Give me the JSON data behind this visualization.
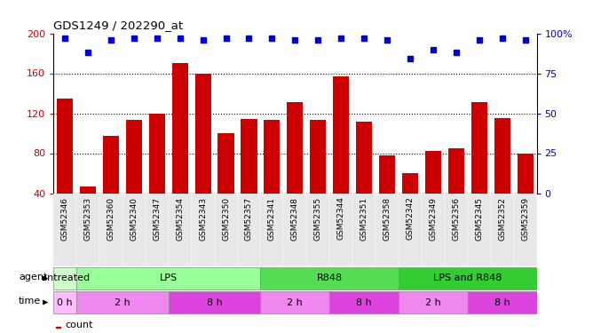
{
  "title": "GDS1249 / 202290_at",
  "samples": [
    "GSM52346",
    "GSM52353",
    "GSM52360",
    "GSM52340",
    "GSM52347",
    "GSM52354",
    "GSM52343",
    "GSM52350",
    "GSM52357",
    "GSM52341",
    "GSM52348",
    "GSM52355",
    "GSM52344",
    "GSM52351",
    "GSM52358",
    "GSM52342",
    "GSM52349",
    "GSM52356",
    "GSM52345",
    "GSM52352",
    "GSM52359"
  ],
  "counts": [
    135,
    47,
    97,
    113,
    120,
    170,
    160,
    100,
    114,
    113,
    131,
    113,
    157,
    112,
    78,
    60,
    82,
    85,
    131,
    115,
    80
  ],
  "percentiles": [
    97,
    88,
    96,
    97,
    97,
    97,
    96,
    97,
    97,
    97,
    96,
    96,
    97,
    97,
    96,
    84,
    90,
    88,
    96,
    97,
    96
  ],
  "bar_color": "#cc0000",
  "dot_color": "#0000cc",
  "ylim_left": [
    40,
    200
  ],
  "ylim_right": [
    0,
    100
  ],
  "yticks_left": [
    40,
    80,
    120,
    160,
    200
  ],
  "yticks_right": [
    0,
    25,
    50,
    75,
    100
  ],
  "agent_groups": [
    {
      "label": "untreated",
      "start": 0,
      "end": 1,
      "color": "#ccffcc"
    },
    {
      "label": "LPS",
      "start": 1,
      "end": 9,
      "color": "#99ff99"
    },
    {
      "label": "R848",
      "start": 9,
      "end": 15,
      "color": "#55dd55"
    },
    {
      "label": "LPS and R848",
      "start": 15,
      "end": 21,
      "color": "#33cc33"
    }
  ],
  "time_groups": [
    {
      "label": "0 h",
      "start": 0,
      "end": 1,
      "color": "#ffbbff"
    },
    {
      "label": "2 h",
      "start": 1,
      "end": 5,
      "color": "#ee88ee"
    },
    {
      "label": "8 h",
      "start": 5,
      "end": 9,
      "color": "#dd44dd"
    },
    {
      "label": "2 h",
      "start": 9,
      "end": 12,
      "color": "#ee88ee"
    },
    {
      "label": "8 h",
      "start": 12,
      "end": 15,
      "color": "#dd44dd"
    },
    {
      "label": "2 h",
      "start": 15,
      "end": 18,
      "color": "#ee88ee"
    },
    {
      "label": "8 h",
      "start": 18,
      "end": 21,
      "color": "#dd44dd"
    }
  ],
  "background_color": "#ffffff",
  "tick_label_color_left": "#cc0000",
  "tick_label_color_right": "#0000cc"
}
